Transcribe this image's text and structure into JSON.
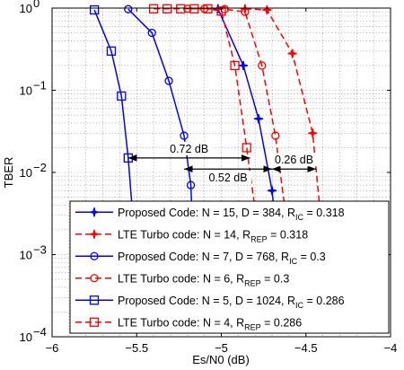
{
  "chart_data": {
    "type": "line",
    "xlabel": "Es/N0 (dB)",
    "ylabel": "TBER",
    "xlim": [
      -6,
      -4
    ],
    "ylim": [
      0.0001,
      1
    ],
    "yscale": "log",
    "grid": true,
    "legend_position": "bottom-right",
    "x_ticks": [
      "−6",
      "−5.5",
      "−5",
      "−4.5",
      "−4"
    ],
    "x_tick_values": [
      -6,
      -5.5,
      -5,
      -4.5,
      -4
    ],
    "y_ticks": [
      {
        "base": "10",
        "exp": "0",
        "value": 1
      },
      {
        "base": "10",
        "exp": "−1",
        "value": 0.1
      },
      {
        "base": "10",
        "exp": "−2",
        "value": 0.01
      },
      {
        "base": "10",
        "exp": "−3",
        "value": 0.001
      },
      {
        "base": "10",
        "exp": "−4",
        "value": 0.0001
      }
    ],
    "series": [
      {
        "name_main": "Proposed Code: N = 15, D = 384, R",
        "name_sub": "IC",
        "name_tail": " = 0.318",
        "color": "#0000ff",
        "dash": "solid",
        "marker": "star",
        "x": [
          -5.02,
          -4.87,
          -4.78,
          -4.7,
          -4.66
        ],
        "y": [
          0.98,
          0.2,
          0.045,
          0.006,
          0.0009
        ]
      },
      {
        "name_main": "LTE Turbo code: N = 14, R",
        "name_sub": "REP",
        "name_tail": " = 0.318",
        "color": "#ff0000",
        "dash": "dashed",
        "marker": "star",
        "x": [
          -4.86,
          -4.73,
          -4.58,
          -4.46,
          -4.4
        ],
        "y": [
          0.98,
          0.95,
          0.28,
          0.03,
          0.0015
        ]
      },
      {
        "name_main": "Proposed Code: N = 7, D = 768, R",
        "name_sub": "IC",
        "name_tail": " = 0.3",
        "color": "#0000ff",
        "dash": "solid",
        "marker": "circle",
        "x": [
          -5.55,
          -5.41,
          -5.31,
          -5.22,
          -5.18,
          -5.16
        ],
        "y": [
          0.97,
          0.5,
          0.13,
          0.028,
          0.007,
          0.0007
        ]
      },
      {
        "name_main": "LTE Turbo code: N = 6, R",
        "name_sub": "REP",
        "name_tail": " = 0.3",
        "color": "#ff0000",
        "dash": "dashed",
        "marker": "circle",
        "x": [
          -5.2,
          -5.1,
          -4.98,
          -4.86,
          -4.76,
          -4.68,
          -4.6
        ],
        "y": [
          0.98,
          0.98,
          0.97,
          0.9,
          0.2,
          0.028,
          0.0015
        ]
      },
      {
        "name_main": "Proposed Code: N = 5, D = 1024, R",
        "name_sub": "IC",
        "name_tail": " = 0.286",
        "color": "#0000ff",
        "dash": "solid",
        "marker": "square",
        "x": [
          -5.75,
          -5.65,
          -5.59,
          -5.55,
          -5.5
        ],
        "y": [
          0.95,
          0.3,
          0.085,
          0.015,
          0.0007
        ]
      },
      {
        "name_main": "LTE Turbo code: N = 4, R",
        "name_sub": "REP",
        "name_tail": " = 0.286",
        "color": "#ff0000",
        "dash": "dashed",
        "marker": "square",
        "x": [
          -5.4,
          -5.32,
          -5.24,
          -5.16,
          -5.08,
          -5.0,
          -4.92,
          -4.85,
          -4.8,
          -4.77
        ],
        "y": [
          0.98,
          0.98,
          0.98,
          0.98,
          0.98,
          0.92,
          0.2,
          0.02,
          0.0035,
          0.0007
        ]
      }
    ],
    "annotations": [
      {
        "text": "0.72 dB",
        "x1": -5.55,
        "x2": -4.83,
        "y": 0.015
      },
      {
        "text": "0.52 dB",
        "x1": -5.22,
        "x2": -4.7,
        "y": 0.011
      },
      {
        "text": "0.26 dB",
        "x1": -4.7,
        "x2": -4.44,
        "y": 0.011
      }
    ]
  }
}
